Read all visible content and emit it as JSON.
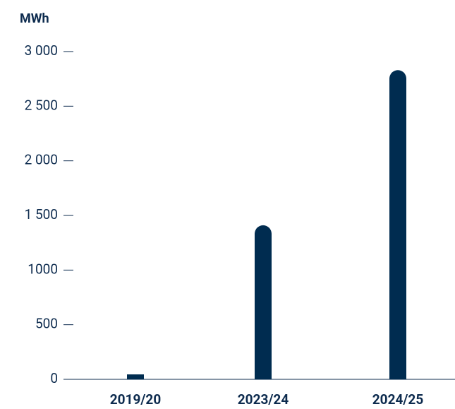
{
  "chart_data": {
    "type": "bar",
    "y_axis_label": "MWh",
    "categories": [
      "2019/20",
      "2023/24",
      "2024/25"
    ],
    "values": [
      45,
      1410,
      2830
    ],
    "color": "#002c50",
    "ylim": [
      0,
      3000
    ],
    "yticks": [
      0,
      500,
      1000,
      {
        "value": 1500,
        "label": "1 500"
      },
      {
        "value": 2000,
        "label": "2 000"
      },
      {
        "value": 2500,
        "label": "2 500"
      },
      {
        "value": 3000,
        "label": "3 000"
      }
    ],
    "grid": false
  }
}
